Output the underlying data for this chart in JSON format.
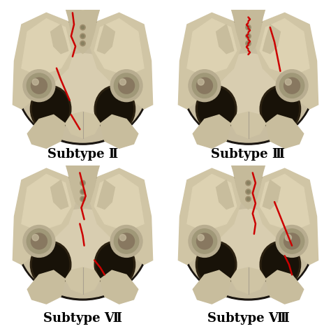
{
  "background_color": "#ffffff",
  "labels": [
    "Subtype Ⅱ",
    "Subtype Ⅲ",
    "Subtype Ⅶ",
    "Subtype Ⅷ"
  ],
  "label_fontsize": 13,
  "label_fontweight": "bold",
  "label_color": "#000000",
  "fracture_color": "#cc0000",
  "fig_width": 4.74,
  "fig_height": 4.74,
  "dpi": 100,
  "bone_light": "#e8dfc8",
  "bone_mid": "#d4c9a8",
  "bone_dark": "#b8a888",
  "bone_shadow": "#8a7a5a",
  "dark_bg": "#252015",
  "white": "#ffffff",
  "panel_bg": "#f5f2ec"
}
